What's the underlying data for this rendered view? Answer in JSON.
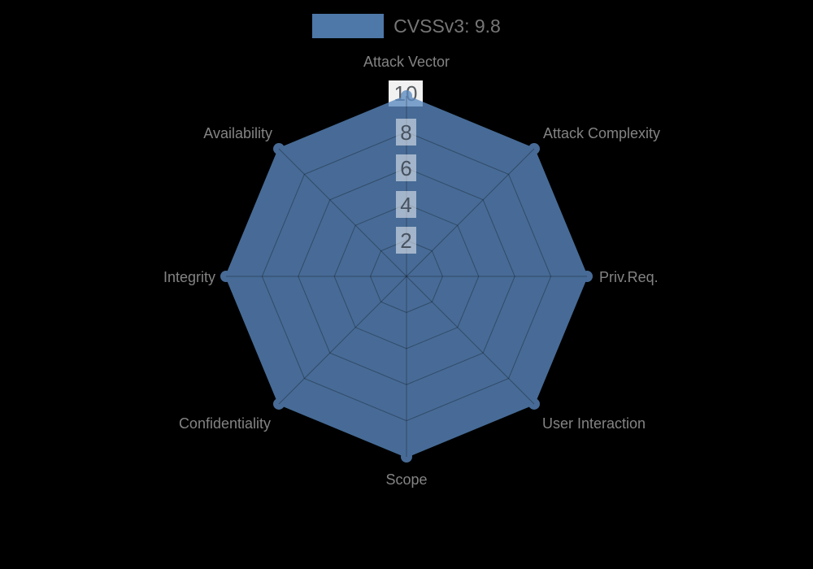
{
  "legend": {
    "label": "CVSSv3: 9.8",
    "swatch_color": "#4d78a8"
  },
  "chart_data": {
    "type": "radar",
    "title": "CVSSv3: 9.8",
    "grid_shape": "octagon",
    "legend_position": "top-center",
    "max": 10,
    "ticks": [
      2,
      4,
      6,
      8,
      10
    ],
    "axes": [
      "Attack Vector",
      "Attack Complexity",
      "Priv.Req.",
      "User Interaction",
      "Scope",
      "Confidentiality",
      "Integrity",
      "Availability"
    ],
    "series": [
      {
        "name": "CVSSv3: 9.8",
        "values": [
          10,
          10,
          10,
          10,
          10,
          10,
          10,
          10
        ],
        "color": "#5b8ac0",
        "marker_radius": 7
      }
    ],
    "colors": {
      "background": "#000000",
      "axis_label": "#838383",
      "tick_label": "#47525f",
      "grid_line": "rgba(0,0,0,0.30)"
    }
  }
}
